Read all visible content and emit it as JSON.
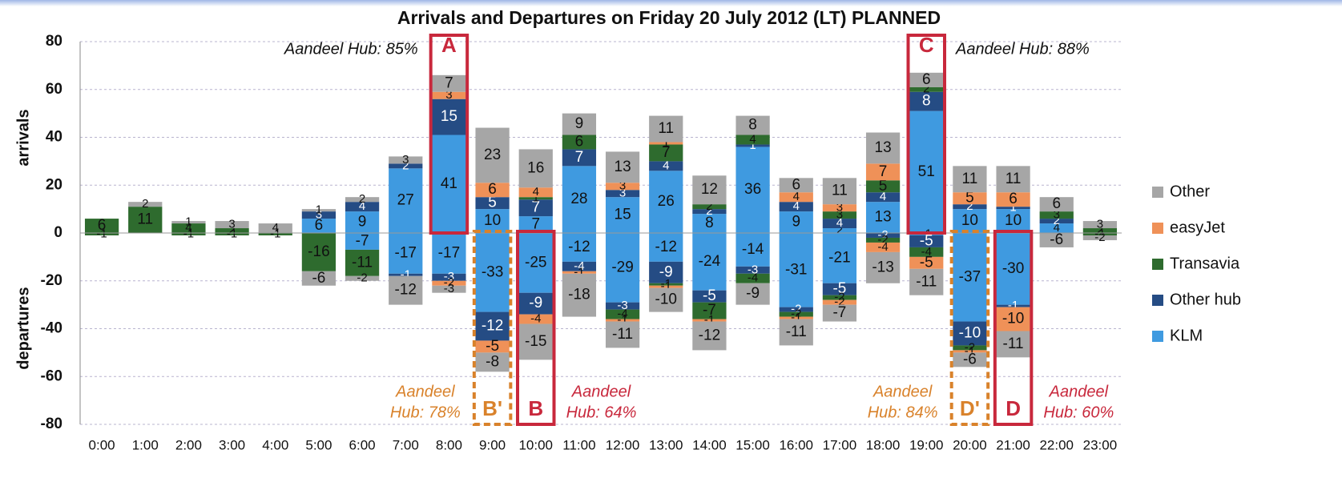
{
  "chart_data": {
    "type": "stacked-bar",
    "title": "Arrivals and Departures on Friday 20 July 2012 (LT) PLANNED",
    "y_label_top": "arrivals",
    "y_label_bottom": "departures",
    "categories": [
      "0:00",
      "1:00",
      "2:00",
      "3:00",
      "4:00",
      "5:00",
      "6:00",
      "7:00",
      "8:00",
      "9:00",
      "10:00",
      "11:00",
      "12:00",
      "13:00",
      "14:00",
      "15:00",
      "16:00",
      "17:00",
      "18:00",
      "19:00",
      "20:00",
      "21:00",
      "22:00",
      "23:00"
    ],
    "ylim": [
      -80,
      80
    ],
    "yticks": [
      -80,
      -60,
      -40,
      -20,
      0,
      20,
      40,
      60,
      80
    ],
    "grid": true,
    "legend": "right",
    "series": [
      {
        "name": "KLM",
        "color": "#3f9ae0",
        "arrivals": [
          0,
          0,
          0,
          0,
          0,
          6,
          9,
          27,
          41,
          10,
          7,
          28,
          15,
          26,
          8,
          36,
          9,
          2,
          13,
          51,
          10,
          10,
          4,
          0
        ],
        "departures": [
          0,
          0,
          0,
          0,
          0,
          0,
          -7,
          -17,
          -17,
          -33,
          -25,
          -12,
          -29,
          -12,
          -24,
          -14,
          -31,
          -21,
          0,
          -1,
          -37,
          -30,
          0,
          0
        ]
      },
      {
        "name": "Other hub",
        "color": "#254c84",
        "arrivals": [
          0,
          0,
          0,
          0,
          0,
          3,
          4,
          2,
          15,
          5,
          7,
          7,
          3,
          4,
          2,
          1,
          4,
          4,
          4,
          8,
          2,
          1,
          2,
          0
        ],
        "departures": [
          0,
          0,
          0,
          0,
          0,
          0,
          0,
          -1,
          -3,
          -12,
          -9,
          -4,
          -3,
          -9,
          -5,
          -3,
          -2,
          -5,
          -2,
          -5,
          -10,
          -1,
          0,
          0
        ]
      },
      {
        "name": "Transavia",
        "color": "#2e6b2e",
        "arrivals": [
          6,
          11,
          4,
          2,
          0,
          0,
          0,
          0,
          0,
          0,
          1,
          6,
          0,
          7,
          2,
          4,
          0,
          3,
          5,
          2,
          0,
          0,
          3,
          2
        ],
        "departures": [
          -1,
          0,
          -1,
          -1,
          -1,
          -16,
          -11,
          0,
          0,
          0,
          0,
          0,
          -4,
          -1,
          -7,
          -4,
          -2,
          -2,
          -2,
          -4,
          -2,
          0,
          0,
          -1
        ]
      },
      {
        "name": "easyJet",
        "color": "#ef9158",
        "arrivals": [
          0,
          0,
          0,
          0,
          0,
          0,
          0,
          0,
          3,
          6,
          4,
          0,
          3,
          1,
          0,
          0,
          4,
          3,
          7,
          0,
          5,
          6,
          0,
          0
        ],
        "departures": [
          0,
          0,
          0,
          0,
          0,
          0,
          0,
          0,
          -2,
          -5,
          -4,
          -1,
          -1,
          -1,
          -1,
          0,
          -1,
          -2,
          -4,
          -5,
          -1,
          -10,
          0,
          0
        ]
      },
      {
        "name": "Other",
        "color": "#a6a6a6",
        "arrivals": [
          0,
          2,
          1,
          3,
          4,
          1,
          2,
          3,
          7,
          23,
          16,
          9,
          13,
          11,
          12,
          8,
          6,
          11,
          13,
          6,
          11,
          11,
          6,
          3
        ],
        "departures": [
          0,
          0,
          0,
          0,
          0,
          -6,
          -2,
          -12,
          -3,
          -8,
          -15,
          -18,
          -11,
          -10,
          -12,
          -9,
          -11,
          -7,
          -13,
          -11,
          -6,
          -11,
          -6,
          -2
        ]
      }
    ],
    "annotations": [
      {
        "letter": "A",
        "text": [
          "Aandeel Hub: 85%"
        ]
      },
      {
        "letter": "B'",
        "text": [
          "Aandeel",
          "Hub: 78%"
        ]
      },
      {
        "letter": "B",
        "text": [
          "Aandeel",
          "Hub: 64%"
        ]
      },
      {
        "letter": "C",
        "text": [
          "Aandeel Hub: 88%"
        ]
      },
      {
        "letter": "D'",
        "text": [
          "Aandeel",
          "Hub: 84%"
        ]
      },
      {
        "letter": "D",
        "text": [
          "Aandeel",
          "Hub: 60%"
        ]
      }
    ]
  }
}
